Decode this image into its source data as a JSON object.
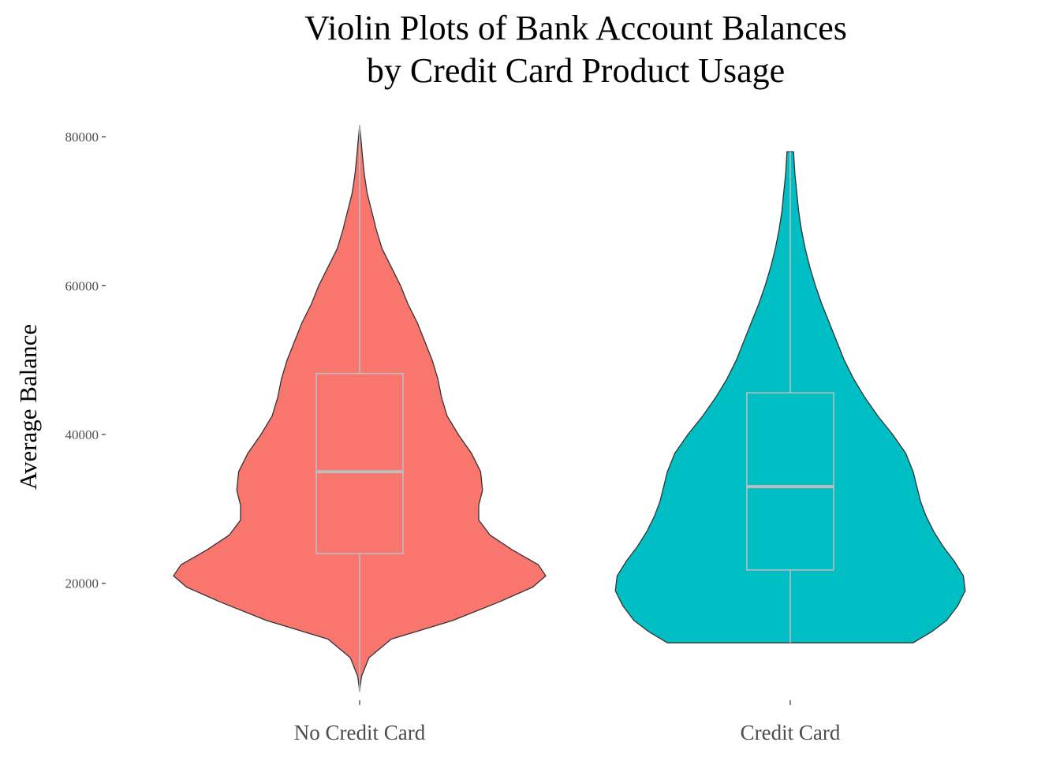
{
  "chart_data": {
    "type": "violin",
    "title_lines": [
      "Violin Plots of Bank Account Balances",
      "by Credit Card Product Usage"
    ],
    "xlabel": "",
    "ylabel": "Average Balance",
    "ylim": [
      4500,
      82500
    ],
    "yticks": [
      20000,
      40000,
      60000,
      80000
    ],
    "yticklabels": [
      "20000",
      "40000",
      "60000",
      "80000"
    ],
    "grid": false,
    "legend": "none",
    "categories": [
      "No Credit Card",
      "Credit Card"
    ],
    "series": [
      {
        "name": "No Credit Card",
        "color": "#F8766D",
        "box": {
          "min": 5500,
          "q1": 24000,
          "median": 35000,
          "q3": 48200,
          "max": 81500
        },
        "density_profile": [
          [
            5500,
            0
          ],
          [
            7500,
            0.01
          ],
          [
            10000,
            0.05
          ],
          [
            12500,
            0.17
          ],
          [
            15000,
            0.5
          ],
          [
            17500,
            0.75
          ],
          [
            19500,
            0.93
          ],
          [
            21000,
            1.0
          ],
          [
            22500,
            0.96
          ],
          [
            24500,
            0.82
          ],
          [
            26500,
            0.7
          ],
          [
            28500,
            0.64
          ],
          [
            30500,
            0.64
          ],
          [
            32500,
            0.66
          ],
          [
            35000,
            0.65
          ],
          [
            37500,
            0.6
          ],
          [
            40000,
            0.53
          ],
          [
            42500,
            0.47
          ],
          [
            45000,
            0.44
          ],
          [
            47500,
            0.42
          ],
          [
            50000,
            0.39
          ],
          [
            52500,
            0.35
          ],
          [
            55000,
            0.31
          ],
          [
            57500,
            0.26
          ],
          [
            60000,
            0.22
          ],
          [
            62500,
            0.17
          ],
          [
            65000,
            0.12
          ],
          [
            67500,
            0.09
          ],
          [
            70000,
            0.065
          ],
          [
            72500,
            0.04
          ],
          [
            75000,
            0.025
          ],
          [
            77500,
            0.015
          ],
          [
            80000,
            0.006
          ],
          [
            81500,
            0
          ]
        ]
      },
      {
        "name": "Credit Card",
        "color": "#00BFC4",
        "box": {
          "min": 12000,
          "q1": 21800,
          "median": 33000,
          "q3": 45600,
          "max": 78000
        },
        "density_profile": [
          [
            12000,
            0.66
          ],
          [
            13500,
            0.76
          ],
          [
            15000,
            0.84
          ],
          [
            17000,
            0.9
          ],
          [
            19000,
            0.94
          ],
          [
            21000,
            0.93
          ],
          [
            23000,
            0.88
          ],
          [
            25000,
            0.82
          ],
          [
            27000,
            0.77
          ],
          [
            29000,
            0.73
          ],
          [
            31000,
            0.7
          ],
          [
            33000,
            0.68
          ],
          [
            35000,
            0.66
          ],
          [
            37500,
            0.62
          ],
          [
            40000,
            0.55
          ],
          [
            42500,
            0.47
          ],
          [
            45000,
            0.4
          ],
          [
            47500,
            0.34
          ],
          [
            50000,
            0.29
          ],
          [
            52500,
            0.25
          ],
          [
            55000,
            0.21
          ],
          [
            57500,
            0.17
          ],
          [
            60000,
            0.135
          ],
          [
            62500,
            0.105
          ],
          [
            65000,
            0.08
          ],
          [
            67500,
            0.06
          ],
          [
            70000,
            0.045
          ],
          [
            72500,
            0.035
          ],
          [
            75000,
            0.025
          ],
          [
            77000,
            0.02
          ],
          [
            78000,
            0.018
          ]
        ]
      }
    ]
  }
}
